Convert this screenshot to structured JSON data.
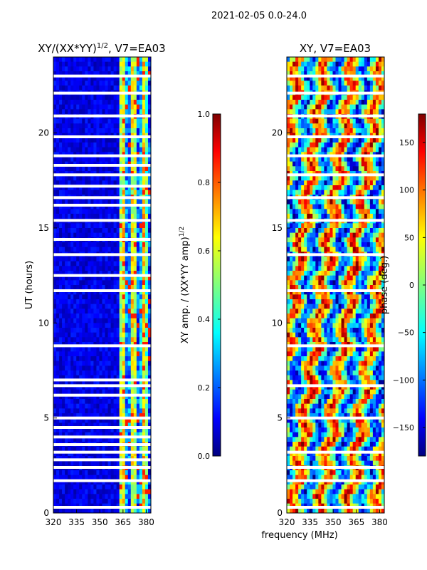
{
  "suptitle": "2021-02-05 0.0-24.0",
  "chart_data": [
    {
      "type": "heatmap",
      "title": "XY/(XX*YY)",
      "title_exponent": "1/2",
      "title_suffix": ", V7=EA03",
      "xlabel": "",
      "ylabel": "UT (hours)",
      "xlim": [
        320,
        383
      ],
      "ylim": [
        0,
        24
      ],
      "xticks": [
        320,
        335,
        350,
        365,
        380
      ],
      "yticks": [
        0,
        5,
        10,
        15,
        20
      ],
      "colorbar": {
        "label": "XY amp. / (XX*YY amp)",
        "label_exponent": "1/2",
        "range": [
          0.0,
          1.0
        ],
        "ticks": [
          "0.0",
          "0.2",
          "0.4",
          "0.6",
          "0.8",
          "1.0"
        ],
        "colormap": "jet"
      },
      "flagged_hours": [
        0.3,
        1.7,
        2.4,
        2.8,
        3.2,
        3.6,
        4.0,
        4.5,
        5.0,
        6.2,
        6.7,
        7.0,
        8.8,
        11.7,
        12.5,
        13.6,
        14.4,
        15.4,
        16.2,
        16.6,
        17.2,
        17.8,
        18.3,
        18.8,
        19.8,
        20.9,
        22.1,
        23.0
      ]
    },
    {
      "type": "heatmap",
      "title": "XY, V7=EA03",
      "xlabel": "frequency (MHz)",
      "ylabel": "",
      "xlim": [
        320,
        383
      ],
      "ylim": [
        0,
        24
      ],
      "xticks": [
        320,
        335,
        350,
        365,
        380
      ],
      "yticks": [
        0,
        5,
        10,
        15,
        20
      ],
      "colorbar": {
        "label": "phase (deg.)",
        "range": [
          -180,
          180
        ],
        "ticks": [
          "150",
          "100",
          "50",
          "0",
          "−50",
          "−100",
          "−150"
        ],
        "colormap": "jet"
      },
      "flagged_hours": [
        0.3,
        1.7,
        2.4,
        3.2,
        5.0,
        6.7,
        8.8,
        11.7,
        13.6,
        15.4,
        16.6,
        17.8,
        18.8,
        19.8,
        20.9,
        22.1,
        23.0
      ]
    }
  ],
  "colors": {
    "dark_blue": "#00007f",
    "blue": "#0000ff",
    "cyan": "#00ffff",
    "green": "#7fff7f",
    "yellow": "#ffff00",
    "red": "#ff0000",
    "dark_red": "#7f0000"
  }
}
